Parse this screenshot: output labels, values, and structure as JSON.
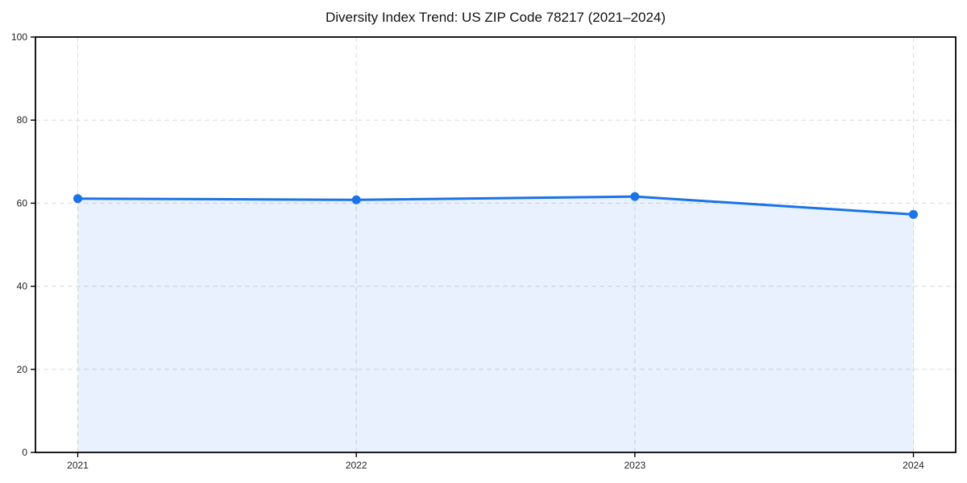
{
  "title": "Diversity Index Trend: US ZIP Code 78217 (2021–2024)",
  "chart_data": {
    "type": "area",
    "title": "Diversity Index Trend: US ZIP Code 78217 (2021–2024)",
    "series_name": "Diversity Index",
    "categories": [
      "2021",
      "2022",
      "2023",
      "2024"
    ],
    "values": [
      61.1,
      60.8,
      61.6,
      57.3
    ],
    "xlabel": "",
    "ylabel": "",
    "ylim": [
      0,
      100
    ],
    "yticks": [
      0,
      20,
      40,
      60,
      80,
      100
    ],
    "grid": true,
    "grid_style": "dashed",
    "legend_position": "none",
    "colors": {
      "line": "#1a73e8",
      "marker": "#1a73e8",
      "area_fill": "rgba(26,115,232,0.10)",
      "grid": "#dcdcdc",
      "axis": "#000000",
      "title_text": "#111111",
      "tick_text": "#222222",
      "background": "#ffffff"
    }
  }
}
